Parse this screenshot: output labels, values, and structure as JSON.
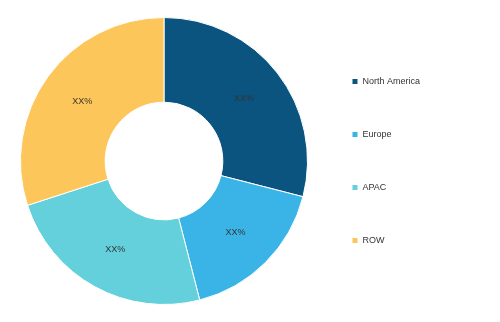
{
  "chart_data": {
    "type": "doughnut",
    "categories": [
      "North America",
      "Europe",
      "APAC",
      "ROW"
    ],
    "values": [
      29,
      17,
      24,
      30
    ],
    "value_labels": [
      "XX%",
      "XX%",
      "XX%",
      "XX%"
    ],
    "colors": [
      "#0b5480",
      "#3ab4e6",
      "#63d0dc",
      "#fdc65b"
    ],
    "data_labels": true,
    "legend": "right"
  }
}
